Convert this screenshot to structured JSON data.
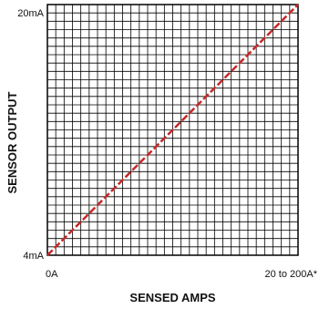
{
  "chart_data": {
    "type": "line",
    "xlabel": "SENSED AMPS",
    "ylabel": "SENSOR OUTPUT",
    "x_ticks": [
      "0A",
      "20 to 200A*"
    ],
    "y_ticks": [
      "4mA",
      "20mA"
    ],
    "x": [
      0,
      1
    ],
    "y": [
      4,
      20
    ],
    "xlim": [
      0,
      1
    ],
    "ylim": [
      4,
      20
    ],
    "grid": true,
    "line_style": "dashed",
    "colors": {
      "line": "#c62828",
      "grid": "#000000",
      "text": "#111111"
    }
  }
}
